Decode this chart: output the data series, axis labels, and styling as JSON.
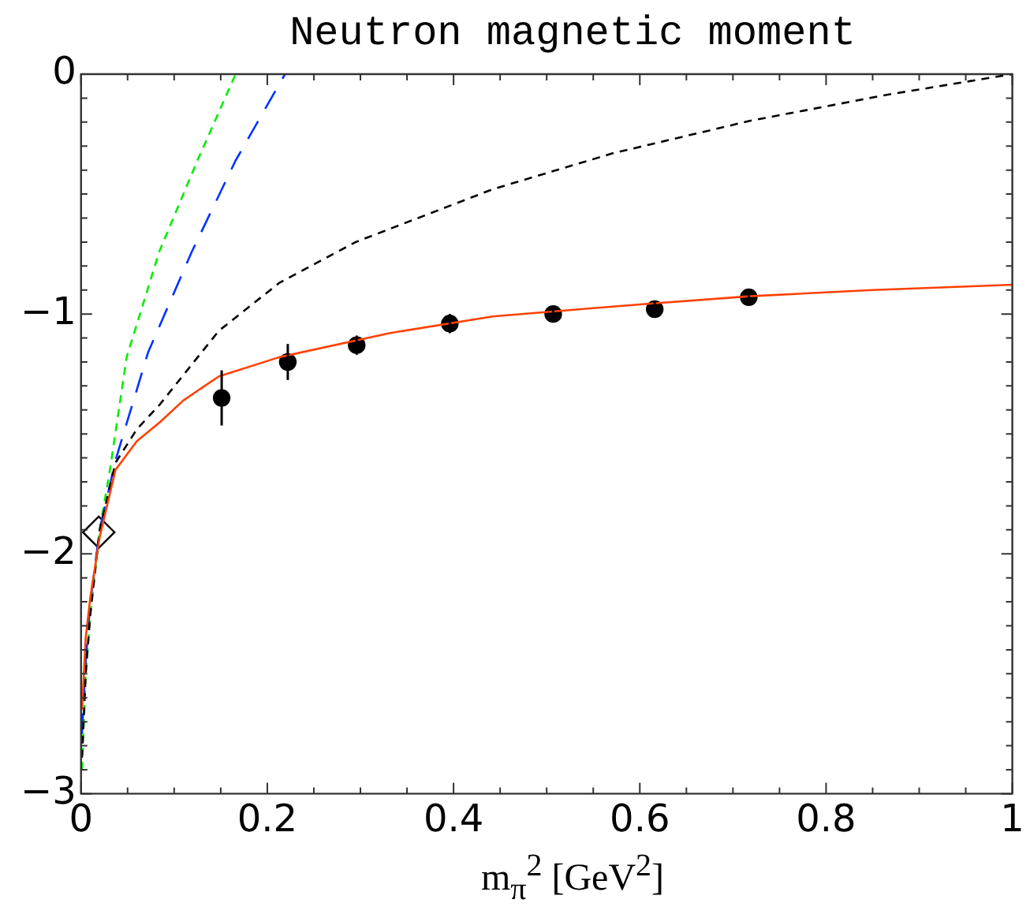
{
  "chart_data": {
    "type": "line",
    "title": "Neutron magnetic moment",
    "xlabel": "m$_{π}$$^{2}$ [GeV$^{2}$]",
    "xlim": [
      0,
      1
    ],
    "ylim": [
      -3,
      0
    ],
    "xticks": [
      0,
      {
        "value": 0.05,
        "label": null
      },
      {
        "value": 0.1,
        "label": null
      },
      {
        "value": 0.15,
        "label": null
      },
      0.2,
      {
        "value": 0.25,
        "label": null
      },
      {
        "value": 0.3,
        "label": null
      },
      {
        "value": 0.35,
        "label": null
      },
      0.4,
      {
        "value": 0.45,
        "label": null
      },
      {
        "value": 0.5,
        "label": null
      },
      {
        "value": 0.55,
        "label": null
      },
      0.6,
      {
        "value": 0.65,
        "label": null
      },
      {
        "value": 0.7,
        "label": null
      },
      {
        "value": 0.75,
        "label": null
      },
      0.8,
      {
        "value": 0.85,
        "label": null
      },
      {
        "value": 0.9,
        "label": null
      },
      {
        "value": 0.95,
        "label": null
      },
      1
    ],
    "yticks": [
      -3,
      {
        "value": -2.9,
        "label": null
      },
      {
        "value": -2.8,
        "label": null
      },
      {
        "value": -2.7,
        "label": null
      },
      {
        "value": -2.6,
        "label": null
      },
      {
        "value": -2.5,
        "label": null
      },
      {
        "value": -2.4,
        "label": null
      },
      {
        "value": -2.3,
        "label": null
      },
      {
        "value": -2.2,
        "label": null
      },
      {
        "value": -2.1,
        "label": null
      },
      -2,
      {
        "value": -1.9,
        "label": null
      },
      {
        "value": -1.8,
        "label": null
      },
      {
        "value": -1.7,
        "label": null
      },
      {
        "value": -1.6,
        "label": null
      },
      {
        "value": -1.5,
        "label": null
      },
      {
        "value": -1.4,
        "label": null
      },
      {
        "value": -1.3,
        "label": null
      },
      {
        "value": -1.2,
        "label": null
      },
      {
        "value": -1.1,
        "label": null
      },
      -1,
      {
        "value": -0.9,
        "label": null
      },
      {
        "value": -0.8,
        "label": null
      },
      {
        "value": -0.7,
        "label": null
      },
      {
        "value": -0.6,
        "label": null
      },
      {
        "value": -0.5,
        "label": null
      },
      {
        "value": -0.4,
        "label": null
      },
      {
        "value": -0.3,
        "label": null
      },
      {
        "value": -0.2,
        "label": null
      },
      {
        "value": -0.1,
        "label": null
      },
      0
    ],
    "grid": false,
    "legend": false,
    "series": [
      {
        "color": "#ff4000",
        "line_style": "solid",
        "marker": "none",
        "x": [
          0.001,
          0.005,
          0.01,
          0.02,
          0.037,
          0.06,
          0.085,
          0.11,
          0.148,
          0.213,
          0.331,
          0.442,
          0.6,
          0.718,
          0.85,
          1
        ],
        "values": [
          -2.65,
          -2.35,
          -2.18,
          -1.93,
          -1.65,
          -1.53,
          -1.45,
          -1.36,
          -1.26,
          -1.18,
          -1.08,
          -1.01,
          -0.96,
          -0.926,
          -0.9,
          -0.878
        ]
      },
      {
        "color": "#000000",
        "line_style": "dotted",
        "marker": "none",
        "x": [
          0.001,
          0.005,
          0.01,
          0.02,
          0.037,
          0.06,
          0.084,
          0.148,
          0.213,
          0.295,
          0.442,
          0.571,
          0.718,
          0.864,
          1
        ],
        "values": [
          -2.85,
          -2.5,
          -2.25,
          -1.9,
          -1.62,
          -1.48,
          -1.38,
          -1.07,
          -0.87,
          -0.7,
          -0.48,
          -0.33,
          -0.195,
          -0.087,
          0
        ]
      },
      {
        "color": "#0033ff",
        "line_style": "dashed",
        "marker": "none",
        "x": [
          0.001,
          0.005,
          0.01,
          0.02,
          0.037,
          0.072,
          0.119,
          0.166,
          0.219
        ],
        "values": [
          -2.75,
          -2.45,
          -2.2,
          -1.9,
          -1.61,
          -1.16,
          -0.74,
          -0.36,
          0
        ]
      },
      {
        "color": "#00ee00",
        "line_style": "dotted",
        "marker": "none",
        "x": [
          0.001,
          0.005,
          0.01,
          0.02,
          0.031,
          0.049,
          0.084,
          0.125,
          0.166
        ],
        "values": [
          -2.9,
          -2.5,
          -2.25,
          -1.9,
          -1.65,
          -1.18,
          -0.74,
          -0.36,
          0
        ]
      },
      {
        "type": "scatter",
        "color": "#000000",
        "marker": "circle",
        "x": [
          0.151,
          0.222,
          0.296,
          0.396,
          0.507,
          0.616,
          0.717
        ],
        "values": [
          -1.35,
          -1.2,
          -1.13,
          -1.04,
          -1.0,
          -0.98,
          -0.93
        ],
        "errors": [
          0.115,
          0.075,
          0.04,
          0.04,
          0.03,
          0.03,
          0.02
        ]
      },
      {
        "type": "scatter",
        "color": "#000000",
        "marker": "diamond",
        "x": [
          0.019
        ],
        "values": [
          -1.91
        ]
      }
    ]
  }
}
